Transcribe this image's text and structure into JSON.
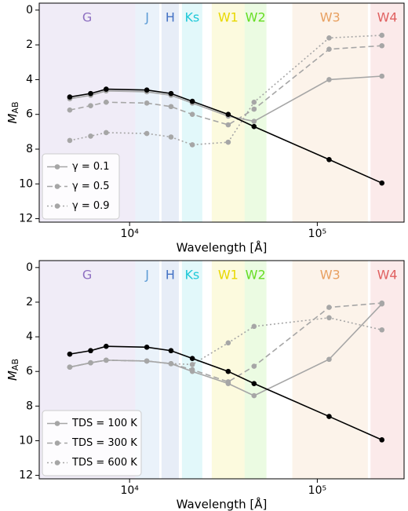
{
  "chart_data": [
    {
      "type": "line",
      "xscale": "log",
      "yinverted": true,
      "xlabel": "Wavelength [Å]",
      "ylabel": "M",
      "ylabel_sub": "AB",
      "x": [
        4800,
        6200,
        7500,
        12350,
        16620,
        21590,
        33526,
        46030,
        115608,
        220883
      ],
      "xlim": [
        3300,
        290000
      ],
      "ylim": [
        12.2,
        -0.4
      ],
      "xticks": [
        {
          "value": 10000,
          "label": "10⁴"
        },
        {
          "value": 100000,
          "label": "10⁵"
        }
      ],
      "yticks": [
        0,
        2,
        4,
        6,
        8,
        10,
        12
      ],
      "legend": "lower left",
      "bands": [
        {
          "label": "G",
          "range": [
            3300,
            10700
          ],
          "color": "#8e6fc1"
        },
        {
          "label": "J",
          "range": [
            10700,
            14400
          ],
          "color": "#5b9bd5"
        },
        {
          "label": "H",
          "range": [
            14800,
            18300
          ],
          "color": "#4472c4"
        },
        {
          "label": "Ks",
          "range": [
            19000,
            24400
          ],
          "color": "#1ec8d8"
        },
        {
          "label": "W1",
          "range": [
            27400,
            41000
          ],
          "color": "#e8d800"
        },
        {
          "label": "W2",
          "range": [
            41000,
            53600
          ],
          "color": "#66dd22"
        },
        {
          "label": "W3",
          "range": [
            73600,
            186000
          ],
          "color": "#e8a060"
        },
        {
          "label": "W4",
          "range": [
            192000,
            290000
          ],
          "color": "#e06060"
        }
      ],
      "series": [
        {
          "color": "#000000",
          "linestyle": "solid",
          "values": [
            5.0,
            4.8,
            4.55,
            4.6,
            4.8,
            5.25,
            6.0,
            6.7,
            8.6,
            9.95
          ]
        },
        {
          "name": "γ = 0.1",
          "color": "#a6a6a6",
          "linestyle": "solid",
          "values": [
            5.1,
            4.9,
            4.65,
            4.7,
            4.9,
            5.35,
            6.1,
            6.4,
            4.0,
            3.8
          ]
        },
        {
          "name": "γ = 0.5",
          "color": "#a6a6a6",
          "linestyle": "dashed",
          "values": [
            5.75,
            5.5,
            5.3,
            5.35,
            5.55,
            6.0,
            6.6,
            5.7,
            2.25,
            2.05
          ]
        },
        {
          "name": "γ = 0.9",
          "color": "#a6a6a6",
          "linestyle": "dotted",
          "values": [
            7.5,
            7.25,
            7.05,
            7.1,
            7.3,
            7.75,
            7.6,
            5.3,
            1.6,
            1.45
          ]
        }
      ]
    },
    {
      "type": "line",
      "xscale": "log",
      "yinverted": true,
      "xlabel": "Wavelength [Å]",
      "ylabel": "M",
      "ylabel_sub": "AB",
      "x": [
        4800,
        6200,
        7500,
        12350,
        16620,
        21590,
        33526,
        46030,
        115608,
        220883
      ],
      "xlim": [
        3300,
        290000
      ],
      "ylim": [
        12.2,
        -0.4
      ],
      "xticks": [
        {
          "value": 10000,
          "label": "10⁴"
        },
        {
          "value": 100000,
          "label": "10⁵"
        }
      ],
      "yticks": [
        0,
        2,
        4,
        6,
        8,
        10,
        12
      ],
      "legend": "lower left",
      "bands": [
        {
          "label": "G",
          "range": [
            3300,
            10700
          ],
          "color": "#8e6fc1"
        },
        {
          "label": "J",
          "range": [
            10700,
            14400
          ],
          "color": "#5b9bd5"
        },
        {
          "label": "H",
          "range": [
            14800,
            18300
          ],
          "color": "#4472c4"
        },
        {
          "label": "Ks",
          "range": [
            19000,
            24400
          ],
          "color": "#1ec8d8"
        },
        {
          "label": "W1",
          "range": [
            27400,
            41000
          ],
          "color": "#e8d800"
        },
        {
          "label": "W2",
          "range": [
            41000,
            53600
          ],
          "color": "#66dd22"
        },
        {
          "label": "W3",
          "range": [
            73600,
            186000
          ],
          "color": "#e8a060"
        },
        {
          "label": "W4",
          "range": [
            192000,
            290000
          ],
          "color": "#e06060"
        }
      ],
      "series": [
        {
          "color": "#000000",
          "linestyle": "solid",
          "values": [
            5.0,
            4.8,
            4.55,
            4.6,
            4.8,
            5.25,
            6.0,
            6.7,
            8.6,
            9.95
          ]
        },
        {
          "name": "TDS = 100 K",
          "color": "#a6a6a6",
          "linestyle": "solid",
          "values": [
            5.75,
            5.5,
            5.35,
            5.4,
            5.55,
            6.0,
            6.7,
            7.4,
            5.3,
            2.1
          ]
        },
        {
          "name": "TDS = 300 K",
          "color": "#a6a6a6",
          "linestyle": "dashed",
          "values": [
            5.75,
            5.5,
            5.35,
            5.4,
            5.55,
            5.9,
            6.6,
            5.7,
            2.3,
            2.05
          ]
        },
        {
          "name": "TDS = 600 K",
          "color": "#a6a6a6",
          "linestyle": "dotted",
          "values": [
            5.75,
            5.5,
            5.35,
            5.4,
            5.55,
            5.6,
            4.35,
            3.4,
            2.9,
            3.6
          ]
        }
      ]
    }
  ]
}
